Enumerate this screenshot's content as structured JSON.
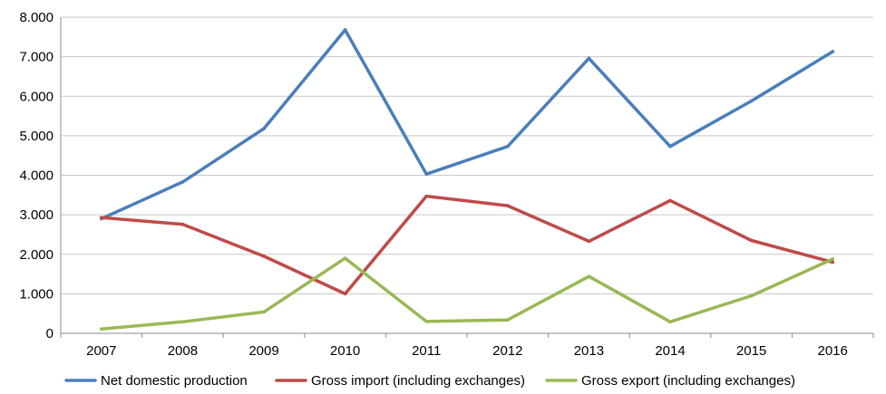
{
  "chart_data": {
    "type": "line",
    "title": "",
    "xlabel": "",
    "ylabel": "",
    "categories": [
      "2007",
      "2008",
      "2009",
      "2010",
      "2011",
      "2012",
      "2013",
      "2014",
      "2015",
      "2016"
    ],
    "ylim": [
      0,
      8000
    ],
    "yticks": [
      0,
      1000,
      2000,
      3000,
      4000,
      5000,
      6000,
      7000,
      8000
    ],
    "ytick_labels": [
      "0",
      "1.000",
      "2.000",
      "3.000",
      "4.000",
      "5.000",
      "6.000",
      "7.000",
      "8.000"
    ],
    "grid": true,
    "legend_position": "bottom",
    "series": [
      {
        "name": "Net domestic production",
        "color": "#4a7ebb",
        "values": [
          2900,
          3830,
          5180,
          7680,
          4030,
          4730,
          6960,
          4730,
          5880,
          7130
        ]
      },
      {
        "name": "Gross import (including exchanges)",
        "color": "#be4b48",
        "values": [
          2930,
          2760,
          1950,
          1000,
          3470,
          3230,
          2330,
          3360,
          2350,
          1800
        ]
      },
      {
        "name": "Gross export (including exchanges)",
        "color": "#98b954",
        "values": [
          110,
          290,
          540,
          1900,
          300,
          340,
          1440,
          290,
          950,
          1880
        ]
      }
    ]
  }
}
